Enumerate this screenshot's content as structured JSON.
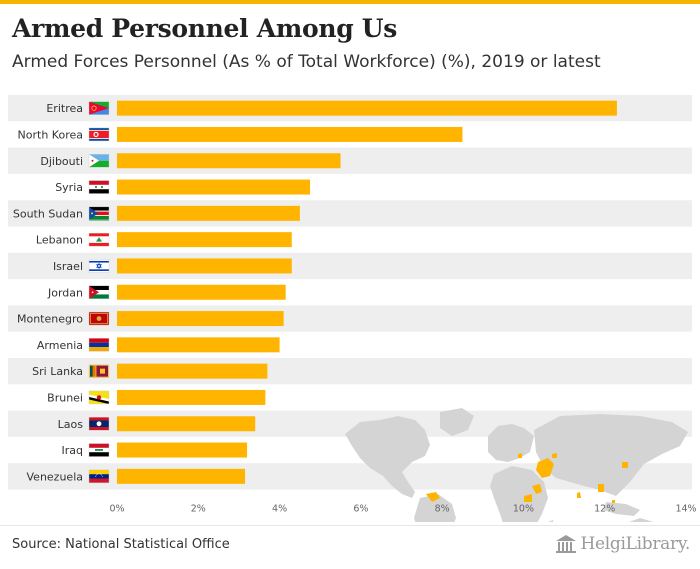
{
  "header": {
    "title": "Armed Personnel Among Us",
    "subtitle": "Armed Forces Personnel (As % of Total Workforce) (%), 2019 or latest"
  },
  "footer": {
    "source": "Source: National Statistical Office",
    "logo_text": "HelgiLibrary."
  },
  "colors": {
    "bar": "#ffb400",
    "stripe": "#eeeeee",
    "map": "#d4d4d4",
    "map_highlight": "#ffb400",
    "axis_text": "#666666",
    "label_text": "#333333"
  },
  "chart_data": {
    "type": "bar",
    "orientation": "horizontal",
    "title": "Armed Personnel Among Us",
    "subtitle": "Armed Forces Personnel (As % of Total Workforce) (%), 2019 or latest",
    "categories": [
      "Eritrea",
      "North Korea",
      "Djibouti",
      "Syria",
      "South Sudan",
      "Lebanon",
      "Israel",
      "Jordan",
      "Montenegro",
      "Armenia",
      "Sri Lanka",
      "Brunei",
      "Laos",
      "Iraq",
      "Venezuela"
    ],
    "values": [
      12.3,
      8.5,
      5.5,
      4.75,
      4.5,
      4.3,
      4.3,
      4.15,
      4.1,
      4.0,
      3.7,
      3.65,
      3.4,
      3.2,
      3.15
    ],
    "xlim": [
      0,
      14
    ],
    "xticks": [
      0,
      2,
      4,
      6,
      8,
      10,
      12,
      14
    ],
    "tick_labels": [
      "0%",
      "2%",
      "4%",
      "6%",
      "8%",
      "10%",
      "12%",
      "14%"
    ],
    "flags": [
      "flag-eritrea-icon",
      "flag-north-korea-icon",
      "flag-djibouti-icon",
      "flag-syria-icon",
      "flag-south-sudan-icon",
      "flag-lebanon-icon",
      "flag-israel-icon",
      "flag-jordan-icon",
      "flag-montenegro-icon",
      "flag-armenia-icon",
      "flag-sri-lanka-icon",
      "flag-brunei-icon",
      "flag-laos-icon",
      "flag-iraq-icon",
      "flag-venezuela-icon"
    ],
    "grid": false,
    "legend": "none",
    "background": "world-map-icon"
  }
}
